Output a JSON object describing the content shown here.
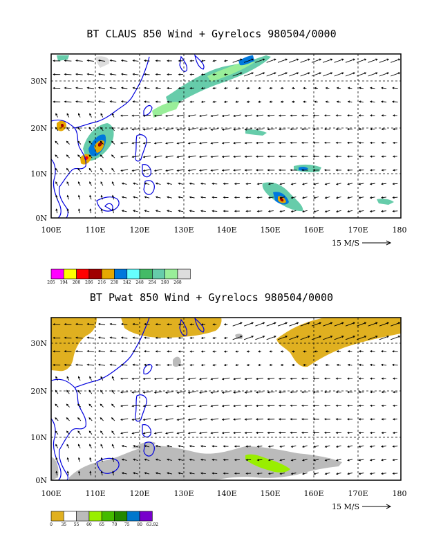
{
  "maps": [
    {
      "title": "BT CLAUS 850 Wind + Gyrelocs 980504/0000",
      "lat_labels": [
        "30N",
        "20N",
        "10N",
        "0N"
      ],
      "lon_labels": [
        "100E",
        "110E",
        "120E",
        "130E",
        "140E",
        "150E",
        "160E",
        "170E",
        "180"
      ],
      "vector_scale_label": "15 M/S",
      "legend": {
        "labels": [
          "205",
          "194",
          "200",
          "206",
          "216",
          "230",
          "242",
          "248",
          "254",
          "260",
          "268"
        ],
        "colors": [
          "#ff00ff",
          "#ffff00",
          "#ff0000",
          "#a00000",
          "#e6a800",
          "#0078dc",
          "#66ffff",
          "#44bb66",
          "#66ccaa",
          "#99ee99",
          "#dddddd"
        ]
      }
    },
    {
      "title": "BT Pwat 850 Wind + Gyrelocs 980504/0000",
      "lat_labels": [
        "30N",
        "20N",
        "10N",
        "0N"
      ],
      "lon_labels": [
        "100E",
        "110E",
        "120E",
        "130E",
        "140E",
        "150E",
        "160E",
        "170E",
        "180"
      ],
      "vector_scale_label": "15 M/S",
      "legend": {
        "labels": [
          "0",
          "35",
          "55",
          "60",
          "65",
          "70",
          "75",
          "80",
          "63.92"
        ],
        "colors": [
          "#e0b020",
          "#ffffff",
          "#bbbbbb",
          "#99ee00",
          "#44bb00",
          "#228800",
          "#0077cc",
          "#7700cc"
        ]
      }
    }
  ]
}
